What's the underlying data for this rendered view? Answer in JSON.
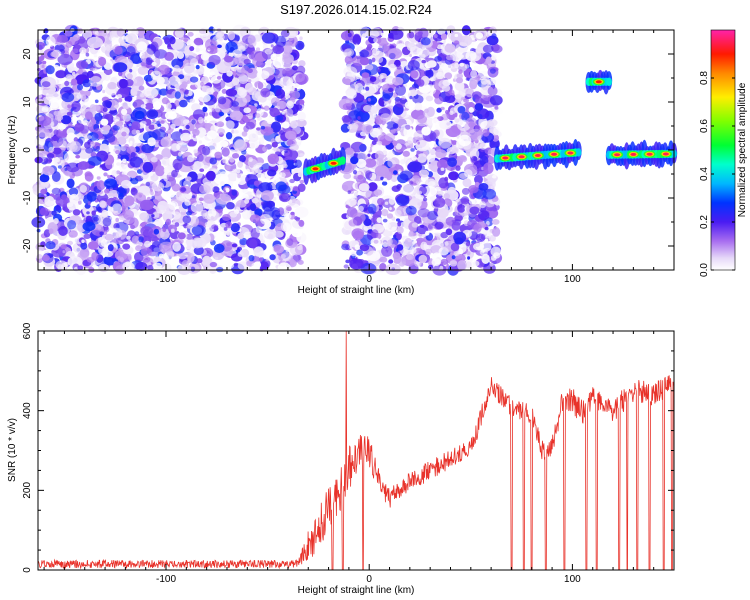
{
  "title": "S197.2026.014.15.02.R24",
  "chart_data": [
    {
      "type": "heatmap",
      "title": "S197.2026.014.15.02.R24",
      "xlabel": "Height of straight line (km)",
      "ylabel": "Frequency (Hz)",
      "xlim": [
        -163,
        150
      ],
      "ylim": [
        -25,
        25
      ],
      "xticks": [
        -100,
        0,
        100
      ],
      "xtick_labels": [
        "-100",
        "0",
        "100"
      ],
      "yticks": [
        -20,
        -10,
        0,
        10,
        20
      ],
      "ytick_labels": [
        "-20",
        "-10",
        "0",
        "10",
        "20"
      ],
      "colorbar": {
        "label": "Normalized spectral amplitude",
        "range": [
          0,
          1
        ],
        "ticks": [
          0.0,
          0.2,
          0.4,
          0.6,
          0.8
        ],
        "tick_labels": [
          "0.0",
          "0.2",
          "0.4",
          "0.6",
          "0.8"
        ]
      },
      "noise_regions": [
        {
          "x": [
            -163,
            -33
          ],
          "amp": 0.18
        },
        {
          "x": [
            -12,
            63
          ],
          "amp": 0.17
        }
      ],
      "blank_regions": [
        [
          -31,
          -13
        ],
        [
          63,
          66
        ],
        [
          107,
          118
        ]
      ],
      "signal_segments": [
        {
          "x": [
            -31,
            -13
          ],
          "freq_start": -4.5,
          "freq_end": -2.2,
          "peak": 0.9
        },
        {
          "x": [
            63,
            103
          ],
          "freq_start": -1.8,
          "freq_end": -0.5,
          "peak": 0.95
        },
        {
          "x": [
            108,
            118
          ],
          "freq_start": 14.2,
          "freq_end": 14.2,
          "peak": 0.9
        },
        {
          "x": [
            118,
            150
          ],
          "freq_start": -1.0,
          "freq_end": -0.8,
          "peak": 0.95
        }
      ]
    },
    {
      "type": "line",
      "xlabel": "Height of straight line (km)",
      "ylabel": "SNR (10 * v/v)",
      "xlim": [
        -163,
        150
      ],
      "ylim": [
        0,
        600
      ],
      "xticks": [
        -100,
        0,
        100
      ],
      "xtick_labels": [
        "-100",
        "0",
        "100"
      ],
      "yticks": [
        0,
        200,
        400,
        600
      ],
      "ytick_labels": [
        "0",
        "200",
        "400",
        "600"
      ],
      "color": "#e8322a",
      "series": [
        {
          "name": "SNR",
          "x": [
            -163,
            -35,
            -30,
            -25,
            -20,
            -15,
            -10,
            -8,
            -5,
            0,
            5,
            10,
            20,
            30,
            40,
            50,
            55,
            60,
            70,
            80,
            85,
            90,
            95,
            100,
            105,
            110,
            120,
            130,
            140,
            150
          ],
          "base": [
            15,
            15,
            60,
            100,
            160,
            190,
            260,
            260,
            300,
            300,
            220,
            180,
            220,
            250,
            280,
            310,
            380,
            460,
            410,
            390,
            300,
            310,
            420,
            430,
            390,
            430,
            400,
            450,
            440,
            470
          ],
          "noise": [
            10,
            10,
            40,
            50,
            60,
            60,
            60,
            60,
            40,
            40,
            30,
            25,
            25,
            25,
            25,
            25,
            30,
            25,
            25,
            25,
            25,
            25,
            30,
            35,
            35,
            30,
            30,
            30,
            30,
            30
          ],
          "spikes": [
            {
              "x": -11.3,
              "y": 600
            }
          ],
          "gaps_to_zero": [
            -18,
            -13,
            -3,
            70,
            76,
            80,
            87,
            96,
            107,
            112,
            123,
            127,
            132,
            138,
            145,
            149
          ]
        }
      ]
    }
  ]
}
